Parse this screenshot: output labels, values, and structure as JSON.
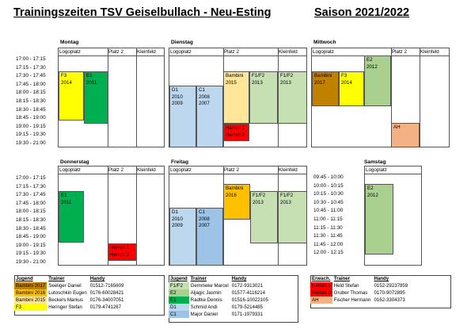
{
  "header": {
    "title": "Trainingszeiten TSV Geiselbullach - Neu-Esting",
    "season": "Saison 2021/2022"
  },
  "colors": {
    "yellow": "#ffff00",
    "dark_green": "#00b050",
    "light_green": "#c6e0b4",
    "light_blue": "#bdd7ee",
    "red": "#ff0000",
    "gold": "#ffc000",
    "brown": "#c08000",
    "light_yellow": "#ffe699",
    "salmon": "#f4b183",
    "mid_green": "#a9d08e"
  },
  "times_week": [
    "17:00 - 17:15",
    "17:15 - 17:30",
    "17:30 - 17:45",
    "17:45 - 18:00",
    "18:00 - 18:15",
    "18:15 - 18:30",
    "18:30 - 18:45",
    "18:45 - 19:00",
    "19:00 - 19:15",
    "19:15 - 19:30",
    "19:30 - 21:00"
  ],
  "times_saturday": [
    "09:45 - 10:00",
    "10:00 - 10:15",
    "10:15 - 10:30",
    "10:30 - 10:45",
    "10:45 - 11:00",
    "11:00 - 11:15",
    "11:15 - 11:30",
    "11:30 - 11:45",
    "11:45 - 12:00",
    "12:00 - 12:15"
  ],
  "columns": {
    "logoplatz": "Logoplatz",
    "platz2": "Platz 2",
    "kleinfeld": "Kleinfeld"
  },
  "days": {
    "monday": "Montag",
    "tuesday": "Dienstag",
    "wednesday": "Mittwoch",
    "thursday": "Donnerstag",
    "friday": "Freitag",
    "saturday": "Samstag"
  },
  "blocks": {
    "mon_f3": [
      "F3",
      "2014"
    ],
    "mon_e1": [
      "E1",
      "2011"
    ],
    "tue_bambini": [
      "Bambini",
      "2015"
    ],
    "tue_f1f2_a": [
      "F1/F2",
      "2013"
    ],
    "tue_f1f2_b": [
      "F1/F2",
      "2013"
    ],
    "tue_d1": [
      "D1",
      "2010",
      "2009"
    ],
    "tue_c1": [
      "C1",
      "2008",
      "2007"
    ],
    "tue_herren": [
      "Herren 1",
      "Herren 2"
    ],
    "wed_bambini": [
      "Bambini",
      "2017"
    ],
    "wed_f3": [
      "F3",
      "2014"
    ],
    "wed_e2": [
      "E2",
      "2012"
    ],
    "wed_ah": [
      "AH"
    ],
    "thu_e1": [
      "E1",
      "2011"
    ],
    "thu_herren": [
      "Herren 1",
      "Herren 2"
    ],
    "fri_bambini": [
      "Bambini",
      "2016"
    ],
    "fri_f1f2_a": [
      "F1/F2",
      "2013"
    ],
    "fri_f1f2_b": [
      "F1/F2",
      "2013"
    ],
    "fri_d1": [
      "D1",
      "2010",
      "2009"
    ],
    "fri_c1": [
      "C1",
      "2008",
      "2007"
    ],
    "sat_e2": [
      "E2",
      "2012"
    ]
  },
  "legend_jugend": {
    "headers": [
      "Jugend",
      "Trainer",
      "Handy"
    ],
    "rows": [
      {
        "team": "Bambini 2017",
        "trainer": "Seeliger Daniel",
        "phone": "01512-7165609",
        "color": "#c08000"
      },
      {
        "team": "Bambini 2016",
        "trainer": "Lutoschkin Eugen",
        "phone": "0176-60028421",
        "color": "#ffc000"
      },
      {
        "team": "Bambini 2015",
        "trainer": "Beckers Markus",
        "phone": "0176-34007051",
        "color": "#ffe699"
      },
      {
        "team": "F3",
        "trainer": "Heringer Stefan",
        "phone": "0179-4741267",
        "color": "#ffff00"
      }
    ]
  },
  "legend_jugend2": {
    "headers": [
      "Jugend",
      "Trainer",
      "Handy"
    ],
    "rows": [
      {
        "team": "F1/F2",
        "trainer": "Gemmeke Marcel",
        "phone": "0172-9313021",
        "color": "#c6e0b4"
      },
      {
        "team": "E2",
        "trainer": "Aljagic Jasmin",
        "phone": "01577-4116214",
        "color": "#a9d08e"
      },
      {
        "team": "E1",
        "trainer": "Radtke Dennis",
        "phone": "01516-10022105",
        "color": "#00b050"
      },
      {
        "team": "D1",
        "trainer": "Schmid Andi",
        "phone": "0179-5214485",
        "color": "#bdd7ee"
      },
      {
        "team": "C1",
        "trainer": "Major Daniel",
        "phone": "0171-1979331",
        "color": "#9dc3e6"
      }
    ]
  },
  "legend_erwachsene": {
    "headers": [
      "Erwach.",
      "Trainer",
      "Handy"
    ],
    "rows": [
      {
        "team": "Herren 1",
        "trainer": "Held Stefan",
        "phone": "0152-29237859",
        "color": "#ff0000"
      },
      {
        "team": "Herren 2",
        "trainer": "Gruber Thomas",
        "phone": "0170-9072895",
        "color": "#ff0000"
      },
      {
        "team": "AH",
        "trainer": "Fischer Hermann",
        "phone": "0162-3304373",
        "color": "#f4b183"
      }
    ]
  }
}
